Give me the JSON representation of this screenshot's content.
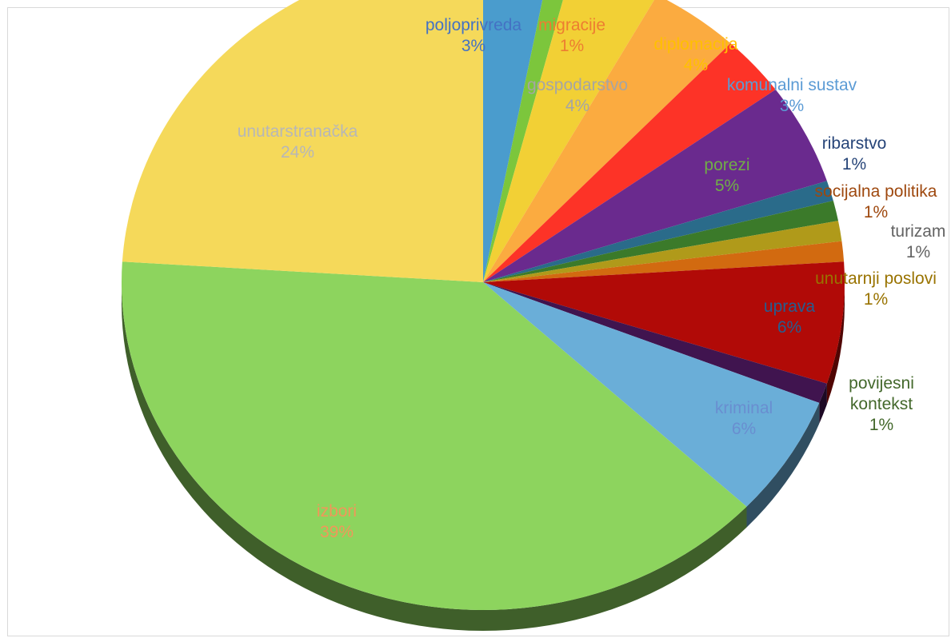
{
  "chart_data": {
    "type": "pie",
    "title": "",
    "slices": [
      {
        "name": "poljoprivreda",
        "value": 3,
        "pct_label": "3%",
        "color": "#4a9ccd",
        "label_color": "#4472c4"
      },
      {
        "name": "migracije",
        "value": 1,
        "pct_label": "1%",
        "color": "#7cc63c",
        "label_color": "#ed7d31"
      },
      {
        "name": "gospodarstvo",
        "value": 4,
        "pct_label": "4%",
        "color": "#f2d035",
        "label_color": "#a5a5a5"
      },
      {
        "name": "diplomacija",
        "value": 4,
        "pct_label": "4%",
        "color": "#fbab40",
        "label_color": "#ffc000"
      },
      {
        "name": "komunalni sustav",
        "value": 3,
        "pct_label": "3%",
        "color": "#fd3327",
        "label_color": "#5b9bd5"
      },
      {
        "name": "porezi",
        "value": 5,
        "pct_label": "5%",
        "color": "#6a2a8e",
        "label_color": "#70ad47"
      },
      {
        "name": "ribarstvo",
        "value": 1,
        "pct_label": "1%",
        "color": "#2a6b8a",
        "label_color": "#264478"
      },
      {
        "name": "socijalna politika",
        "value": 1,
        "pct_label": "1%",
        "color": "#3b7a2a",
        "label_color": "#9e480e"
      },
      {
        "name": "turizam",
        "value": 1,
        "pct_label": "1%",
        "color": "#b09a1a",
        "label_color": "#636363"
      },
      {
        "name": "unutarnji poslovi",
        "value": 1,
        "pct_label": "1%",
        "color": "#d26a10",
        "label_color": "#997300"
      },
      {
        "name": "uprava",
        "value": 6,
        "pct_label": "6%",
        "color": "#b10a07",
        "label_color": "#255e91"
      },
      {
        "name": "povijesni kontekst",
        "value": 1,
        "pct_label": "1%",
        "color": "#40144f",
        "label_color": "#43682b"
      },
      {
        "name": "kriminal",
        "value": 6,
        "pct_label": "6%",
        "color": "#6aaed8",
        "label_color": "#698ed0"
      },
      {
        "name": "izbori",
        "value": 39,
        "pct_label": "39%",
        "color": "#8dd45e",
        "label_color": "#f1975a"
      },
      {
        "name": "unutarstranačka",
        "value": 24,
        "pct_label": "24%",
        "color": "#f5d95a",
        "label_color": "#b7b7b7"
      }
    ]
  }
}
